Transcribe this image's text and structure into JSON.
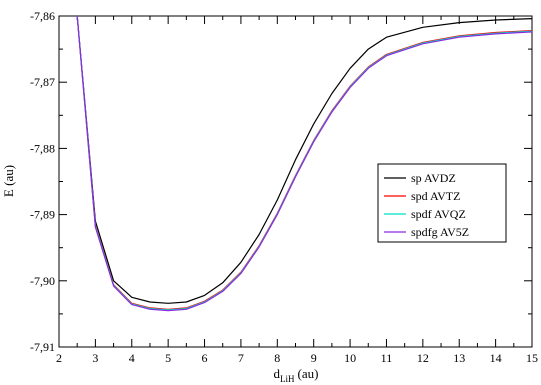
{
  "chart_data": {
    "type": "line",
    "xlabel_main": "d",
    "xlabel_sub": "LiH",
    "xlabel_unit": "(au)",
    "ylabel": "E (au)",
    "xlim": [
      2,
      15
    ],
    "ylim": [
      -7.91,
      -7.86
    ],
    "xticks": [
      2,
      3,
      4,
      5,
      6,
      7,
      8,
      9,
      10,
      11,
      12,
      13,
      14,
      15
    ],
    "yticks": [
      -7.86,
      -7.87,
      -7.88,
      -7.89,
      -7.9,
      -7.91
    ],
    "ytick_labels": [
      "-7,86",
      "-7,87",
      "-7,88",
      "-7,89",
      "-7,90",
      "-7,91"
    ],
    "xtick_labels": [
      "2",
      "3",
      "4",
      "5",
      "6",
      "7",
      "8",
      "9",
      "10",
      "11",
      "12",
      "13",
      "14",
      "15"
    ],
    "grid": false,
    "legend_position": "right",
    "x": [
      2.5,
      3.0,
      3.5,
      4.0,
      4.5,
      5.0,
      5.5,
      6.0,
      6.5,
      7.0,
      7.5,
      8.0,
      8.5,
      9.0,
      9.5,
      10.0,
      10.5,
      11.0,
      12.0,
      13.0,
      14.0,
      15.0
    ],
    "series": [
      {
        "name": "sp AVDZ",
        "color": "#000000",
        "values": [
          -7.86,
          -7.891,
          -7.9,
          -7.9025,
          -7.9032,
          -7.9034,
          -7.9032,
          -7.9022,
          -7.9003,
          -7.8972,
          -7.893,
          -7.8878,
          -7.8817,
          -7.8763,
          -7.8717,
          -7.8679,
          -7.865,
          -7.8632,
          -7.8617,
          -7.861,
          -7.8606,
          -7.8604
        ]
      },
      {
        "name": "spd AVTZ",
        "color": "#ff0000",
        "values": [
          -7.86,
          -7.8917,
          -7.9006,
          -7.9034,
          -7.9041,
          -7.9043,
          -7.9041,
          -7.9031,
          -7.9014,
          -7.8987,
          -7.8947,
          -7.8898,
          -7.8841,
          -7.8788,
          -7.8743,
          -7.8706,
          -7.8677,
          -7.8658,
          -7.864,
          -7.863,
          -7.8625,
          -7.8622
        ]
      },
      {
        "name": "spdf AVQZ",
        "color": "#00e0c8",
        "values": [
          -7.86,
          -7.8918,
          -7.9007,
          -7.9035,
          -7.9042,
          -7.9044,
          -7.9042,
          -7.9032,
          -7.9015,
          -7.8988,
          -7.8948,
          -7.8899,
          -7.8842,
          -7.8789,
          -7.8744,
          -7.8707,
          -7.8678,
          -7.8659,
          -7.8641,
          -7.8631,
          -7.8626,
          -7.8623
        ]
      },
      {
        "name": "spdfg AV5Z",
        "color": "#8a2be2",
        "values": [
          -7.86,
          -7.8919,
          -7.9008,
          -7.9036,
          -7.9043,
          -7.9045,
          -7.9043,
          -7.9033,
          -7.9016,
          -7.8989,
          -7.8949,
          -7.89,
          -7.8843,
          -7.879,
          -7.8745,
          -7.8708,
          -7.8679,
          -7.866,
          -7.8642,
          -7.8632,
          -7.8627,
          -7.8624
        ]
      }
    ]
  }
}
